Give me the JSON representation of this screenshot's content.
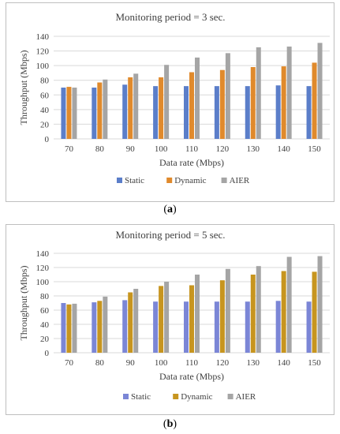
{
  "chart_data": [
    {
      "type": "bar",
      "title": "Monitoring  period = 3 sec.",
      "xlabel": "Data rate (Mbps)",
      "ylabel": "Throughput (Mbps)",
      "ylim": [
        0,
        140
      ],
      "yticks": [
        0,
        20,
        40,
        60,
        80,
        100,
        120,
        140
      ],
      "categories": [
        "70",
        "80",
        "90",
        "100",
        "110",
        "120",
        "130",
        "140",
        "150"
      ],
      "grid": true,
      "legend": "bottom",
      "series": [
        {
          "name": "Static",
          "color": "#5b7ec9",
          "values": [
            70,
            70,
            74,
            72,
            72,
            72,
            72,
            73,
            72
          ]
        },
        {
          "name": "Dynamic",
          "color": "#e08a2c",
          "values": [
            71,
            77,
            84,
            84,
            91,
            94,
            98,
            99,
            104
          ]
        },
        {
          "name": "AIER",
          "color": "#a5a5a5",
          "values": [
            70,
            81,
            89,
            101,
            111,
            117,
            125,
            126,
            131
          ]
        }
      ],
      "sublabel": "(a)"
    },
    {
      "type": "bar",
      "title": "Monitoring  period = 5 sec.",
      "xlabel": "Data rate (Mbps)",
      "ylabel": "Throughput (Mbps)",
      "ylim": [
        0,
        140
      ],
      "yticks": [
        0,
        20,
        40,
        60,
        80,
        100,
        120,
        140
      ],
      "categories": [
        "70",
        "80",
        "90",
        "100",
        "110",
        "120",
        "130",
        "140",
        "150"
      ],
      "grid": true,
      "legend": "bottom",
      "series": [
        {
          "name": "Static",
          "color": "#7b86d6",
          "values": [
            70,
            71,
            74,
            72,
            72,
            72,
            72,
            73,
            72
          ]
        },
        {
          "name": "Dynamic",
          "color": "#c7951f",
          "values": [
            68,
            73,
            85,
            94,
            95,
            102,
            110,
            115,
            114
          ]
        },
        {
          "name": "AIER",
          "color": "#a5a5a5",
          "values": [
            69,
            79,
            90,
            100,
            110,
            118,
            122,
            135,
            136
          ]
        }
      ],
      "sublabel": "(b)"
    }
  ]
}
